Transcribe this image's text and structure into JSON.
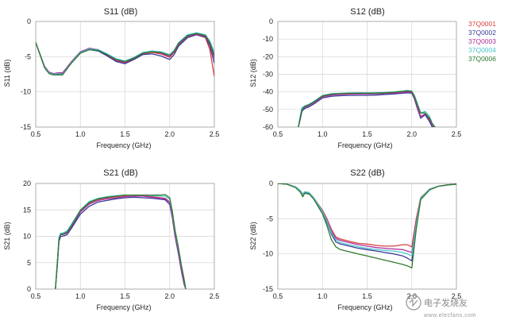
{
  "series_colors": {
    "37Q0001": "#d94040",
    "37Q0002": "#3a3a9a",
    "37Q0003": "#b0309a",
    "37Q0004": "#4cc8d0",
    "37Q0006": "#2f7a2f"
  },
  "legend": [
    "37Q0001",
    "37Q0002",
    "37Q0003",
    "37Q0004",
    "37Q0006"
  ],
  "watermark": {
    "text": "电子发烧友",
    "sub": "www.elecfans.com"
  },
  "chart_data": [
    {
      "id": "s11",
      "type": "line",
      "title": "S11 (dB)",
      "xlabel": "Frequency (GHz)",
      "ylabel": "S11 (dB)",
      "xlim": [
        0.5,
        2.5
      ],
      "ylim": [
        -15,
        0
      ],
      "xticks": [
        0.5,
        1.0,
        1.5,
        2.0,
        2.5
      ],
      "xtick_labels": [
        "0.5",
        "1.0",
        "1.5",
        "2.0",
        "2.5"
      ],
      "yticks": [
        -15,
        -10,
        -5,
        0
      ],
      "ytick_labels": [
        "-15",
        "-10",
        "-5",
        "0"
      ],
      "grid": true,
      "x": [
        0.5,
        0.6,
        0.65,
        0.7,
        0.75,
        0.8,
        0.9,
        1.0,
        1.1,
        1.2,
        1.3,
        1.4,
        1.5,
        1.6,
        1.7,
        1.8,
        1.9,
        2.0,
        2.05,
        2.1,
        2.2,
        2.3,
        2.4,
        2.45,
        2.5
      ],
      "series": [
        {
          "name": "37Q0001",
          "values": [
            -3.0,
            -6.5,
            -7.3,
            -7.5,
            -7.4,
            -7.4,
            -5.8,
            -4.4,
            -3.9,
            -4.1,
            -4.8,
            -5.6,
            -5.9,
            -5.3,
            -4.6,
            -4.4,
            -4.6,
            -5.1,
            -4.4,
            -3.3,
            -2.2,
            -1.9,
            -2.3,
            -4.0,
            -7.8
          ]
        },
        {
          "name": "37Q0002",
          "values": [
            -3.0,
            -6.6,
            -7.4,
            -7.6,
            -7.5,
            -7.5,
            -5.9,
            -4.5,
            -4.0,
            -4.2,
            -4.9,
            -5.7,
            -6.0,
            -5.4,
            -4.7,
            -4.6,
            -4.9,
            -5.4,
            -4.7,
            -3.5,
            -2.3,
            -1.9,
            -2.2,
            -3.5,
            -5.9
          ]
        },
        {
          "name": "37Q0003",
          "values": [
            -3.0,
            -6.4,
            -7.2,
            -7.4,
            -7.3,
            -7.3,
            -5.7,
            -4.3,
            -3.8,
            -4.0,
            -4.7,
            -5.5,
            -5.8,
            -5.2,
            -4.5,
            -4.3,
            -4.5,
            -5.0,
            -4.3,
            -3.2,
            -2.1,
            -1.8,
            -2.1,
            -3.2,
            -5.2
          ]
        },
        {
          "name": "37Q0004",
          "values": [
            -3.0,
            -6.5,
            -7.3,
            -7.5,
            -7.4,
            -7.5,
            -5.8,
            -4.4,
            -3.9,
            -4.0,
            -4.6,
            -5.3,
            -5.6,
            -5.1,
            -4.4,
            -4.2,
            -4.3,
            -4.7,
            -4.1,
            -3.0,
            -1.9,
            -1.6,
            -1.9,
            -2.8,
            -4.4
          ]
        },
        {
          "name": "37Q0006",
          "values": [
            -3.0,
            -6.6,
            -7.4,
            -7.6,
            -7.6,
            -7.6,
            -5.9,
            -4.5,
            -4.0,
            -4.1,
            -4.7,
            -5.4,
            -5.7,
            -5.2,
            -4.5,
            -4.3,
            -4.4,
            -4.8,
            -4.2,
            -3.1,
            -2.0,
            -1.7,
            -2.0,
            -3.0,
            -4.8
          ]
        }
      ]
    },
    {
      "id": "s12",
      "type": "line",
      "title": "S12 (dB)",
      "xlabel": "Frequency (GHz)",
      "ylabel": "S12 (dB)",
      "xlim": [
        0.5,
        2.5
      ],
      "ylim": [
        -60,
        0
      ],
      "xticks": [
        0.5,
        1.0,
        1.5,
        2.0,
        2.5
      ],
      "xtick_labels": [
        "0.5",
        "1.0",
        "1.5",
        "2.0",
        "2.5"
      ],
      "yticks": [
        -60,
        -50,
        -40,
        -30,
        -20,
        -10,
        0
      ],
      "ytick_labels": [
        "-60",
        "-50",
        "-40",
        "-30",
        "-20",
        "-10",
        "0"
      ],
      "grid": true,
      "x": [
        0.73,
        0.75,
        0.77,
        0.8,
        0.85,
        0.9,
        1.0,
        1.1,
        1.2,
        1.3,
        1.4,
        1.5,
        1.6,
        1.7,
        1.8,
        1.9,
        1.95,
        2.0,
        2.03,
        2.06,
        2.1,
        2.15,
        2.2,
        2.23,
        2.26
      ],
      "series": [
        {
          "name": "37Q0001",
          "values": [
            -60,
            -55,
            -50,
            -48.5,
            -47.5,
            -46,
            -42.5,
            -41.5,
            -41.2,
            -41.0,
            -41.0,
            -41.0,
            -41.0,
            -40.8,
            -40.5,
            -40.0,
            -39.8,
            -40.0,
            -43,
            -48,
            -54,
            -53,
            -56,
            -60,
            -60
          ]
        },
        {
          "name": "37Q0002",
          "values": [
            -60,
            -56,
            -51,
            -49.5,
            -48.5,
            -47,
            -43.5,
            -42.5,
            -42.2,
            -42.0,
            -42.0,
            -42.0,
            -41.8,
            -41.5,
            -41.2,
            -40.8,
            -40.5,
            -40.8,
            -44,
            -49,
            -55,
            -53,
            -57,
            -60,
            -60
          ]
        },
        {
          "name": "37Q0003",
          "values": [
            -60,
            -55,
            -50,
            -48.8,
            -47.8,
            -46.3,
            -42.8,
            -41.8,
            -41.5,
            -41.3,
            -41.2,
            -41.2,
            -41.1,
            -40.9,
            -40.7,
            -40.2,
            -40.0,
            -40.2,
            -43.5,
            -48.5,
            -54,
            -52.5,
            -55.5,
            -59,
            -60
          ]
        },
        {
          "name": "37Q0004",
          "values": [
            -60,
            -54,
            -49,
            -48,
            -47,
            -45.5,
            -42,
            -41.0,
            -40.8,
            -40.6,
            -40.5,
            -40.5,
            -40.5,
            -40.3,
            -40.0,
            -39.5,
            -39.2,
            -39.5,
            -42,
            -46,
            -52,
            -51,
            -54,
            -58,
            -60
          ]
        },
        {
          "name": "37Q0006",
          "values": [
            -60,
            -55,
            -50,
            -48.3,
            -47.3,
            -45.8,
            -42.3,
            -41.3,
            -41.0,
            -40.8,
            -40.8,
            -40.8,
            -40.7,
            -40.5,
            -40.2,
            -39.7,
            -39.4,
            -39.7,
            -42.5,
            -47,
            -52,
            -52,
            -55,
            -58,
            -60
          ]
        }
      ]
    },
    {
      "id": "s21",
      "type": "line",
      "title": "S21 (dB)",
      "xlabel": "Frequency (GHz)",
      "ylabel": "S21 (dB)",
      "xlim": [
        0.5,
        2.5
      ],
      "ylim": [
        0,
        20
      ],
      "xticks": [
        0.5,
        1.0,
        1.5,
        2.0,
        2.5
      ],
      "xtick_labels": [
        "0.5",
        "1.0",
        "1.5",
        "2.0",
        "2.5"
      ],
      "yticks": [
        0,
        5,
        10,
        15,
        20
      ],
      "ytick_labels": [
        "0",
        "5",
        "10",
        "15",
        "20"
      ],
      "grid": true,
      "x": [
        0.72,
        0.74,
        0.76,
        0.78,
        0.8,
        0.85,
        0.9,
        1.0,
        1.1,
        1.2,
        1.3,
        1.4,
        1.5,
        1.6,
        1.7,
        1.8,
        1.9,
        1.95,
        2.0,
        2.03,
        2.06,
        2.1,
        2.13,
        2.16,
        2.18
      ],
      "series": [
        {
          "name": "37Q0001",
          "values": [
            0,
            4.5,
            9.5,
            10.5,
            10.5,
            10.8,
            12.0,
            14.8,
            16.3,
            17.0,
            17.3,
            17.5,
            17.7,
            17.8,
            17.7,
            17.5,
            17.3,
            17.2,
            16.5,
            14.0,
            10.5,
            7.0,
            4.0,
            1.5,
            0
          ]
        },
        {
          "name": "37Q0002",
          "values": [
            0,
            4.0,
            9.0,
            10.0,
            10.0,
            10.3,
            11.5,
            14.2,
            15.7,
            16.5,
            16.8,
            17.1,
            17.3,
            17.4,
            17.3,
            17.2,
            17.0,
            16.9,
            16.0,
            13.5,
            10.0,
            6.5,
            3.5,
            1.0,
            0
          ]
        },
        {
          "name": "37Q0003",
          "values": [
            0,
            4.3,
            9.3,
            10.3,
            10.3,
            10.6,
            11.8,
            14.6,
            16.1,
            16.8,
            17.1,
            17.3,
            17.5,
            17.6,
            17.6,
            17.4,
            17.2,
            17.1,
            16.4,
            13.8,
            10.3,
            6.8,
            3.8,
            1.3,
            0
          ]
        },
        {
          "name": "37Q0004",
          "values": [
            0,
            4.8,
            9.8,
            10.6,
            10.6,
            11.0,
            12.3,
            15.0,
            16.6,
            17.2,
            17.5,
            17.7,
            17.8,
            17.8,
            17.8,
            17.7,
            17.6,
            17.6,
            17.0,
            14.5,
            11.0,
            7.5,
            4.5,
            2.0,
            0
          ]
        },
        {
          "name": "37Q0006",
          "values": [
            0,
            4.5,
            9.5,
            10.4,
            10.4,
            10.8,
            12.0,
            14.9,
            16.4,
            17.1,
            17.4,
            17.6,
            17.8,
            17.8,
            17.8,
            17.8,
            17.8,
            17.9,
            17.3,
            14.8,
            11.2,
            7.7,
            4.6,
            2.0,
            0
          ]
        }
      ]
    },
    {
      "id": "s22",
      "type": "line",
      "title": "S22 (dB)",
      "xlabel": "Frequency (GHz)",
      "ylabel": "S22 (dB)",
      "xlim": [
        0.5,
        2.5
      ],
      "ylim": [
        -15,
        0
      ],
      "xticks": [
        0.5,
        1.0,
        1.5,
        2.0,
        2.5
      ],
      "xtick_labels": [
        "0.5",
        "1.0",
        "1.5",
        "2.0",
        "2.5"
      ],
      "yticks": [
        -15,
        -10,
        -5,
        0
      ],
      "ytick_labels": [
        "-15",
        "-10",
        "-5",
        "0"
      ],
      "grid": true,
      "x": [
        0.5,
        0.6,
        0.7,
        0.75,
        0.78,
        0.8,
        0.85,
        0.9,
        1.0,
        1.05,
        1.1,
        1.15,
        1.2,
        1.3,
        1.4,
        1.5,
        1.6,
        1.7,
        1.8,
        1.9,
        1.95,
        2.0,
        2.05,
        2.1,
        2.2,
        2.3,
        2.4,
        2.5
      ],
      "series": [
        {
          "name": "37Q0001",
          "values": [
            0,
            -0.1,
            -0.5,
            -1.0,
            -1.5,
            -1.2,
            -1.3,
            -2.0,
            -3.8,
            -5.0,
            -6.5,
            -7.6,
            -7.9,
            -8.2,
            -8.5,
            -8.6,
            -8.8,
            -8.9,
            -8.9,
            -8.7,
            -8.7,
            -9.0,
            -5.0,
            -2.0,
            -0.8,
            -0.4,
            -0.2,
            -0.1
          ]
        },
        {
          "name": "37Q0002",
          "values": [
            0,
            -0.1,
            -0.5,
            -1.1,
            -1.7,
            -1.3,
            -1.4,
            -2.1,
            -4.0,
            -5.5,
            -7.2,
            -8.3,
            -8.6,
            -8.9,
            -9.2,
            -9.4,
            -9.6,
            -9.8,
            -10.0,
            -10.3,
            -10.6,
            -11.0,
            -6.0,
            -2.2,
            -0.8,
            -0.4,
            -0.2,
            -0.1
          ]
        },
        {
          "name": "37Q0003",
          "values": [
            0,
            -0.1,
            -0.5,
            -1.0,
            -1.6,
            -1.2,
            -1.3,
            -2.0,
            -3.9,
            -5.2,
            -6.8,
            -7.8,
            -8.1,
            -8.4,
            -8.7,
            -8.9,
            -9.1,
            -9.2,
            -9.3,
            -9.4,
            -9.6,
            -9.8,
            -5.5,
            -2.1,
            -0.8,
            -0.4,
            -0.2,
            -0.1
          ]
        },
        {
          "name": "37Q0004",
          "values": [
            0,
            -0.1,
            -0.5,
            -1.0,
            -1.6,
            -1.2,
            -1.3,
            -2.0,
            -4.0,
            -5.3,
            -7.0,
            -8.0,
            -8.4,
            -8.7,
            -9.0,
            -9.2,
            -9.4,
            -9.5,
            -9.6,
            -9.8,
            -10.0,
            -10.3,
            -5.8,
            -2.1,
            -0.8,
            -0.4,
            -0.2,
            -0.1
          ]
        },
        {
          "name": "37Q0006",
          "values": [
            0,
            -0.1,
            -0.6,
            -1.2,
            -1.9,
            -1.4,
            -1.5,
            -2.2,
            -4.3,
            -6.0,
            -8.0,
            -9.0,
            -9.4,
            -9.7,
            -10.0,
            -10.3,
            -10.6,
            -10.9,
            -11.2,
            -11.5,
            -11.7,
            -12.0,
            -6.5,
            -2.3,
            -0.9,
            -0.4,
            -0.2,
            -0.1
          ]
        }
      ]
    }
  ]
}
